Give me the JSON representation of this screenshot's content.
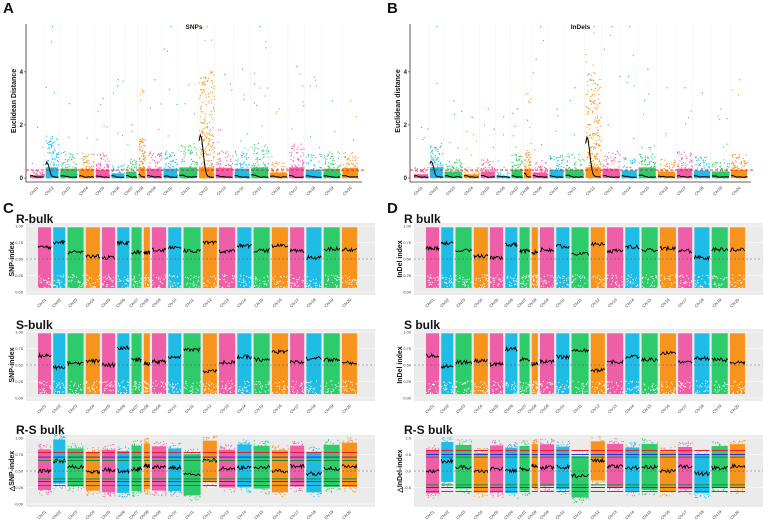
{
  "figure": {
    "panel_letters": [
      "A",
      "B",
      "C",
      "D"
    ],
    "colors": {
      "pink": "#ee5fa7",
      "cyan": "#1fbde6",
      "green": "#2ecb6a",
      "orange": "#f7941d",
      "smooth_line": "#000000",
      "threshold_red": "#e8192c",
      "threshold_blue": "#2233dd",
      "threshold_green": "#1a8a3a",
      "panel_bg": "#ebebeb",
      "grid": "#ffffff"
    }
  },
  "chart_data": [
    {
      "id": "A",
      "type": "scatter",
      "title": "SNPs",
      "xlabel": "",
      "ylabel": "Euclidean Distance",
      "ylim": [
        0,
        5.8
      ],
      "yticks": [
        "0",
        "2",
        "4"
      ],
      "ytick_values": [
        0,
        2,
        4
      ],
      "threshold": 0.3,
      "threshold_color": "#e8192c",
      "categories": [
        "Chr01",
        "Chr02",
        "Chr03",
        "Chr04",
        "Chr05",
        "Chr06",
        "Chr07",
        "Chr08",
        "Chr09",
        "Chr10",
        "Chr11",
        "Chr12",
        "Chr13",
        "Chr14",
        "Chr15",
        "Chr16",
        "Chr17",
        "Chr18",
        "Chr19",
        "Chr20"
      ],
      "chr_rel_length": [
        13,
        12,
        16,
        14,
        13,
        12,
        10,
        6,
        14,
        13,
        17,
        14,
        16,
        14,
        16,
        16,
        14,
        15,
        16,
        15
      ],
      "point_colors": [
        "pink",
        "cyan",
        "green",
        "orange",
        "pink",
        "cyan",
        "green",
        "orange",
        "pink",
        "cyan",
        "green",
        "orange",
        "pink",
        "cyan",
        "green",
        "orange",
        "pink",
        "cyan",
        "green",
        "orange"
      ],
      "max_ed": [
        1.9,
        5.7,
        2.8,
        1.5,
        3.0,
        3.7,
        2.0,
        3.3,
        3.7,
        5.7,
        3.5,
        5.7,
        3.9,
        4.1,
        5.7,
        2.6,
        4.2,
        3.8,
        2.9,
        2.9
      ],
      "dense_level": [
        0.3,
        1.6,
        1.0,
        1.0,
        0.9,
        0.5,
        0.7,
        1.5,
        1.0,
        1.0,
        1.3,
        4.0,
        1.1,
        1.0,
        1.3,
        0.6,
        1.3,
        0.9,
        1.0,
        1.1
      ],
      "smooth_peak": [
        0.05,
        0.55,
        0.05,
        0.05,
        0.05,
        0.05,
        0.05,
        0.1,
        0.05,
        0.05,
        0.08,
        1.6,
        0.05,
        0.05,
        0.08,
        0.03,
        0.05,
        0.05,
        0.05,
        0.05
      ],
      "grid": "vertical-dotted"
    },
    {
      "id": "B",
      "type": "scatter",
      "title": "InDels",
      "xlabel": "",
      "ylabel": "Euclidean distance",
      "ylim": [
        0,
        5.8
      ],
      "yticks": [
        "0",
        "2",
        "4"
      ],
      "ytick_values": [
        0,
        2,
        4
      ],
      "threshold": 0.3,
      "threshold_color": "#e8192c",
      "categories": [
        "Chr01",
        "Chr02",
        "Chr03",
        "Chr04",
        "Chr05",
        "Chr06",
        "Chr07",
        "Chr08",
        "Chr09",
        "Chr10",
        "Chr11",
        "Chr12",
        "Chr13",
        "Chr14",
        "Chr15",
        "Chr16",
        "Chr17",
        "Chr18",
        "Chr19",
        "Chr20"
      ],
      "chr_rel_length": [
        13,
        12,
        16,
        14,
        13,
        12,
        10,
        6,
        14,
        13,
        17,
        14,
        16,
        14,
        16,
        16,
        14,
        15,
        16,
        15
      ],
      "point_colors": [
        "pink",
        "cyan",
        "green",
        "orange",
        "pink",
        "cyan",
        "green",
        "orange",
        "pink",
        "cyan",
        "green",
        "orange",
        "pink",
        "cyan",
        "green",
        "orange",
        "pink",
        "cyan",
        "green",
        "orange"
      ],
      "max_ed": [
        1.9,
        5.7,
        2.9,
        2.3,
        2.6,
        2.3,
        2.6,
        3.2,
        5.7,
        2.6,
        3.4,
        5.7,
        5.7,
        5.7,
        4.1,
        3.4,
        3.4,
        3.2,
        2.6,
        3.7
      ],
      "dense_level": [
        0.4,
        1.3,
        0.7,
        0.4,
        0.7,
        0.2,
        0.9,
        1.0,
        0.6,
        0.9,
        0.9,
        4.0,
        1.0,
        0.8,
        1.2,
        0.7,
        1.0,
        0.8,
        0.7,
        0.9
      ],
      "smooth_peak": [
        0.05,
        0.6,
        0.05,
        0.05,
        0.05,
        0.05,
        0.05,
        0.15,
        0.05,
        0.05,
        0.08,
        1.5,
        0.05,
        0.05,
        0.08,
        0.03,
        0.05,
        0.05,
        0.05,
        0.05
      ],
      "grid": "vertical-dotted"
    },
    {
      "id": "C1",
      "type": "scatter",
      "title": "R-bulk",
      "ylabel": "SNP-index",
      "ylim": [
        0,
        1
      ],
      "yticks": [
        "0.00",
        "0.25",
        "0.50",
        "0.75",
        "1.00"
      ],
      "ytick_values": [
        0,
        0.25,
        0.5,
        0.75,
        1.0
      ],
      "dashed_line": 0.5,
      "categories": [
        "Chr01",
        "Chr02",
        "Chr03",
        "Chr04",
        "Chr05",
        "Chr06",
        "Chr07",
        "Chr08",
        "Chr09",
        "Chr10",
        "Chr11",
        "Chr12",
        "Chr13",
        "Chr14",
        "Chr15",
        "Chr16",
        "Chr17",
        "Chr18",
        "Chr19",
        "Chr20"
      ],
      "smooth_index": [
        0.68,
        0.75,
        0.6,
        0.54,
        0.52,
        0.74,
        0.6,
        0.6,
        0.64,
        0.68,
        0.62,
        0.74,
        0.62,
        0.7,
        0.63,
        0.7,
        0.62,
        0.52,
        0.65,
        0.64
      ]
    },
    {
      "id": "C2",
      "type": "scatter",
      "title": "S-bulk",
      "ylabel": "SNP-index",
      "ylim": [
        0,
        1
      ],
      "yticks": [
        "0.00",
        "0.25",
        "0.50",
        "0.75",
        "1.00"
      ],
      "ytick_values": [
        0,
        0.25,
        0.5,
        0.75,
        1.0
      ],
      "dashed_line": 0.5,
      "categories": [
        "Chr01",
        "Chr02",
        "Chr03",
        "Chr04",
        "Chr05",
        "Chr06",
        "Chr07",
        "Chr08",
        "Chr09",
        "Chr10",
        "Chr11",
        "Chr12",
        "Chr13",
        "Chr14",
        "Chr15",
        "Chr16",
        "Chr17",
        "Chr18",
        "Chr19",
        "Chr20"
      ],
      "smooth_index": [
        0.64,
        0.46,
        0.53,
        0.56,
        0.5,
        0.76,
        0.58,
        0.52,
        0.55,
        0.62,
        0.73,
        0.4,
        0.54,
        0.62,
        0.58,
        0.7,
        0.54,
        0.6,
        0.58,
        0.53
      ]
    },
    {
      "id": "C3",
      "type": "scatter",
      "title": "R-S bulk",
      "ylabel": "△SNP-index",
      "ylim": [
        0,
        1
      ],
      "yticks": [
        "0.00",
        "0.25",
        "0.50",
        "0.75",
        "1.00"
      ],
      "ytick_values": [
        0,
        0.25,
        0.5,
        0.75,
        1.0
      ],
      "dashed_line": 0.5,
      "threshold_lines": [
        0.28,
        0.34,
        0.38,
        0.66,
        0.71,
        0.78
      ],
      "categories": [
        "Chr01",
        "Chr02",
        "Chr03",
        "Chr04",
        "Chr05",
        "Chr06",
        "Chr07",
        "Chr08",
        "Chr09",
        "Chr10",
        "Chr11",
        "Chr12",
        "Chr13",
        "Chr14",
        "Chr15",
        "Chr16",
        "Chr17",
        "Chr18",
        "Chr19",
        "Chr20"
      ],
      "smooth_index": [
        0.5,
        0.65,
        0.56,
        0.49,
        0.52,
        0.5,
        0.53,
        0.58,
        0.56,
        0.55,
        0.44,
        0.66,
        0.54,
        0.55,
        0.56,
        0.5,
        0.57,
        0.46,
        0.54,
        0.57
      ]
    },
    {
      "id": "D1",
      "type": "scatter",
      "title": "R bulk",
      "ylabel": "InDel index",
      "ylim": [
        0,
        1
      ],
      "yticks": [
        "0.00",
        "0.25",
        "0.50",
        "0.75",
        "1.00"
      ],
      "ytick_values": [
        0,
        0.25,
        0.5,
        0.75,
        1.0
      ],
      "dashed_line": 0.5,
      "categories": [
        "Chr01",
        "Chr02",
        "Chr03",
        "Chr04",
        "Chr05",
        "Chr06",
        "Chr07",
        "Chr08",
        "Chr09",
        "Chr10",
        "Chr11",
        "Chr12",
        "Chr13",
        "Chr14",
        "Chr15",
        "Chr16",
        "Chr17",
        "Chr18",
        "Chr19",
        "Chr20"
      ],
      "smooth_index": [
        0.66,
        0.74,
        0.62,
        0.54,
        0.52,
        0.72,
        0.62,
        0.6,
        0.64,
        0.69,
        0.58,
        0.72,
        0.62,
        0.68,
        0.63,
        0.66,
        0.62,
        0.52,
        0.65,
        0.64
      ]
    },
    {
      "id": "D2",
      "type": "scatter",
      "title": "S bulk",
      "ylabel": "InDel index",
      "ylim": [
        0,
        1
      ],
      "yticks": [
        "0.00",
        "0.25",
        "0.50",
        "0.75",
        "1.00"
      ],
      "ytick_values": [
        0,
        0.25,
        0.5,
        0.75,
        1.0
      ],
      "dashed_line": 0.5,
      "categories": [
        "Chr01",
        "Chr02",
        "Chr03",
        "Chr04",
        "Chr05",
        "Chr06",
        "Chr07",
        "Chr08",
        "Chr09",
        "Chr10",
        "Chr11",
        "Chr12",
        "Chr13",
        "Chr14",
        "Chr15",
        "Chr16",
        "Chr17",
        "Chr18",
        "Chr19",
        "Chr20"
      ],
      "smooth_index": [
        0.64,
        0.48,
        0.54,
        0.56,
        0.51,
        0.74,
        0.58,
        0.52,
        0.56,
        0.62,
        0.72,
        0.42,
        0.55,
        0.62,
        0.58,
        0.68,
        0.54,
        0.6,
        0.58,
        0.54
      ]
    },
    {
      "id": "D3",
      "type": "scatter",
      "title": "R-S bulk",
      "ylabel": "△InDel-index",
      "ylim": [
        -1,
        1
      ],
      "yticks": [
        "-0.5",
        "0.0",
        "0.5",
        "1.0"
      ],
      "ytick_values": [
        -0.5,
        0.0,
        0.5,
        1.0
      ],
      "dashed_line": 0.0,
      "threshold_lines": [
        -0.62,
        -0.5,
        -0.42,
        0.42,
        0.5,
        0.62
      ],
      "categories": [
        "Chr01",
        "Chr02",
        "Chr03",
        "Chr04",
        "Chr05",
        "Chr06",
        "Chr07",
        "Chr08",
        "Chr09",
        "Chr10",
        "Chr11",
        "Chr12",
        "Chr13",
        "Chr14",
        "Chr15",
        "Chr16",
        "Chr17",
        "Chr18",
        "Chr19",
        "Chr20"
      ],
      "smooth_index": [
        0.0,
        0.3,
        0.12,
        -0.02,
        0.06,
        0.0,
        0.06,
        0.16,
        0.1,
        0.12,
        -0.15,
        0.32,
        0.14,
        0.1,
        0.12,
        0.0,
        0.14,
        -0.08,
        0.1,
        0.14
      ]
    }
  ]
}
